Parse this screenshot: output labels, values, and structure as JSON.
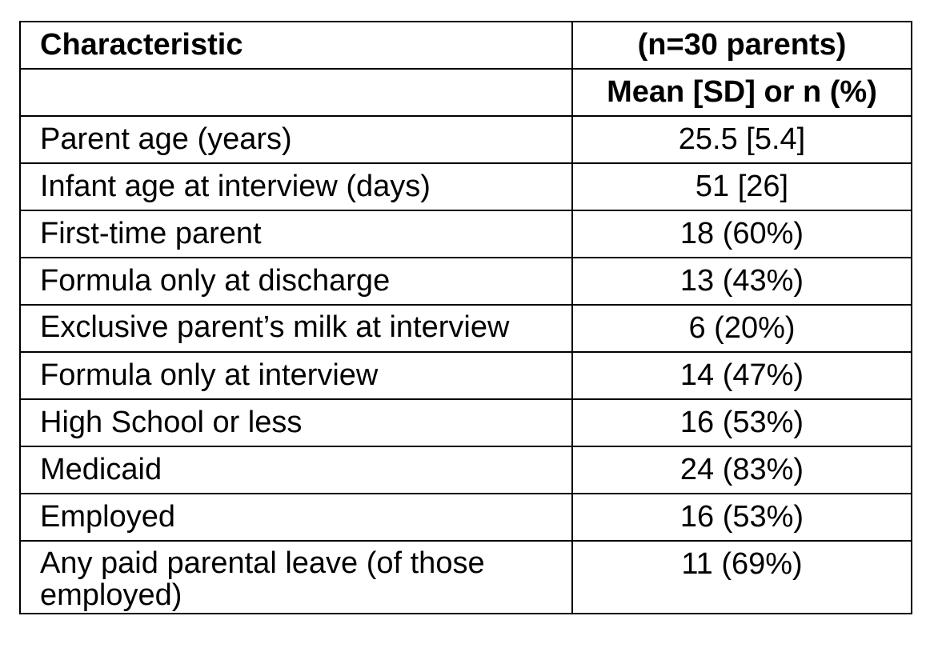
{
  "table": {
    "header": {
      "characteristic": "Characteristic",
      "sample": "(n=30 parents)",
      "blank": "",
      "stat": "Mean [SD] or n (%)"
    },
    "rows": [
      {
        "label": "Parent age (years)",
        "value": "25.5 [5.4]"
      },
      {
        "label": "Infant age at interview (days)",
        "value": "51 [26]"
      },
      {
        "label": "First-time parent",
        "value": "18 (60%)"
      },
      {
        "label": "Formula only at discharge",
        "value": "13 (43%)"
      },
      {
        "label": "Exclusive parent’s milk at interview",
        "value": "6 (20%)"
      },
      {
        "label": "Formula only at interview",
        "value": "14 (47%)"
      },
      {
        "label": "High School or less",
        "value": "16 (53%)"
      },
      {
        "label": "Medicaid",
        "value": "24 (83%)"
      },
      {
        "label": "Employed",
        "value": "16 (53%)"
      },
      {
        "label": "Any paid parental leave (of those employed)",
        "value": "11 (69%)"
      }
    ]
  }
}
